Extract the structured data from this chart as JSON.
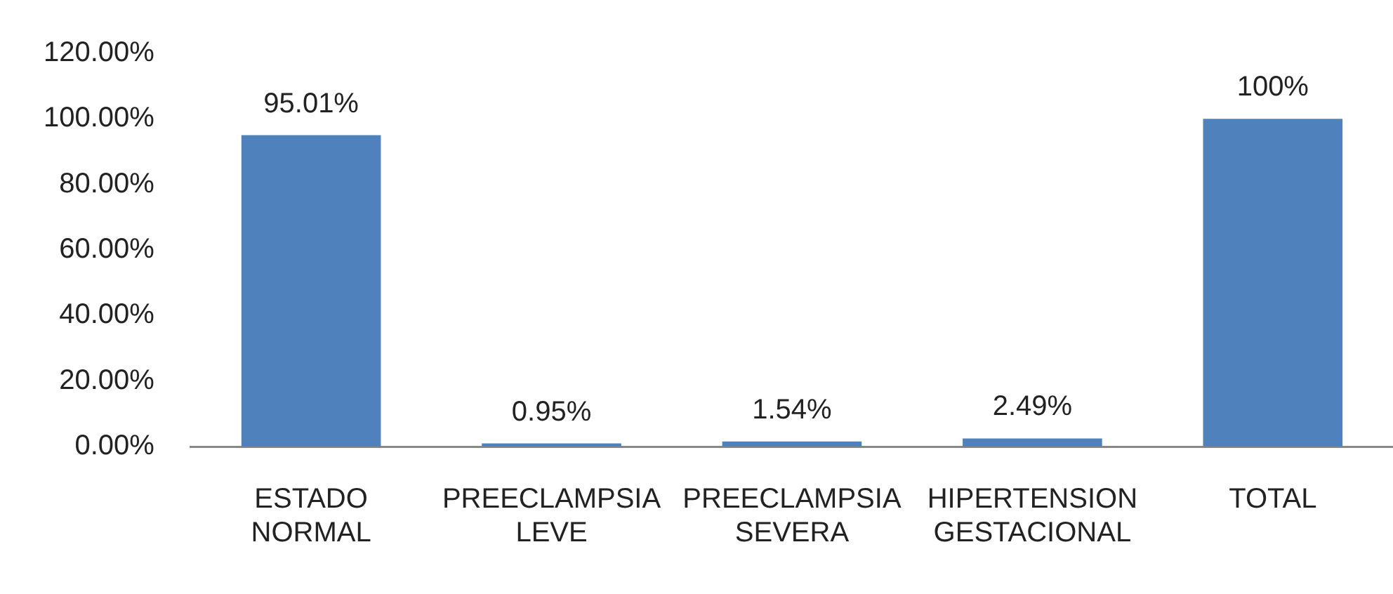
{
  "chart_data": {
    "type": "bar",
    "categories": [
      "ESTADO NORMAL",
      "PREECLAMPSIA LEVE",
      "PREECLAMPSIA SEVERA",
      "HIPERTENSION GESTACIONAL",
      "TOTAL"
    ],
    "values": [
      95.01,
      0.95,
      1.54,
      2.49,
      100
    ],
    "value_labels": [
      "95.01%",
      "0.95%",
      "1.54%",
      "2.49%",
      "100%"
    ],
    "color": "#4f81bd",
    "ylim": [
      0,
      120
    ],
    "yticks": [
      {
        "value": 0,
        "label": "0.00%"
      },
      {
        "value": 20,
        "label": "20.00%"
      },
      {
        "value": 40,
        "label": "40.00%"
      },
      {
        "value": 60,
        "label": "60.00%"
      },
      {
        "value": 80,
        "label": "80.00%"
      },
      {
        "value": 100,
        "label": "100.00%"
      },
      {
        "value": 120,
        "label": "120.00%"
      }
    ],
    "grid": false,
    "legend": false
  }
}
